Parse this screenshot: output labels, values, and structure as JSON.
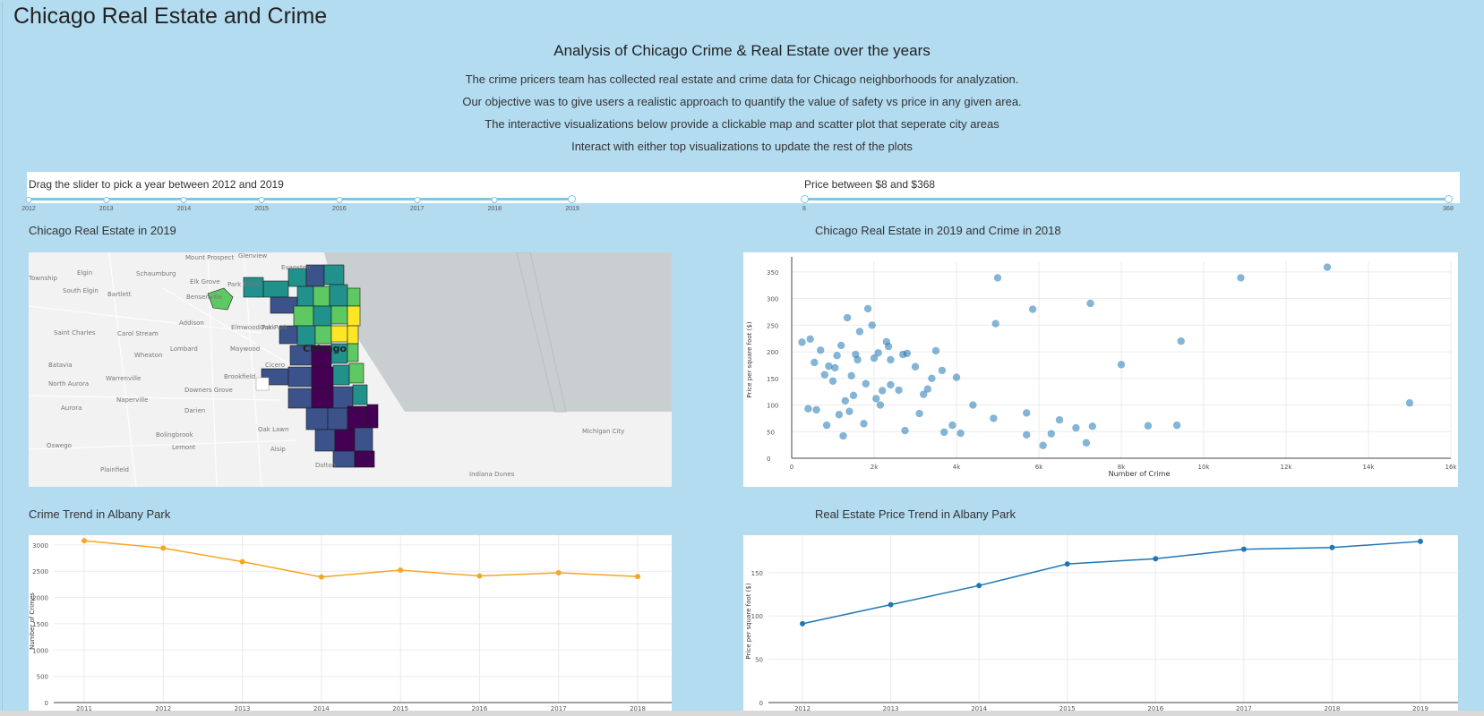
{
  "page": {
    "title": "Chicago Real Estate and Crime",
    "subtitle": "Analysis of Chicago Crime & Real Estate over the years",
    "intro": [
      "The crime pricers team has collected real estate and crime data for Chicago neighborhoods for analyzation.",
      "Our objective was to give users a realistic approach to quantify the value of safety vs price in any given area.",
      "The interactive visualizations below provide a clickable map and scatter plot that seperate city areas",
      "Interact with either top visualizations to update the rest of the plots"
    ]
  },
  "year_slider": {
    "label": "Drag the slider to pick a year between 2012 and 2019",
    "ticks": [
      "2012",
      "2013",
      "2014",
      "2015",
      "2016",
      "2017",
      "2018",
      "2019"
    ],
    "value": 2019
  },
  "price_slider": {
    "label": "Price between $8 and $368",
    "min_label": "8",
    "max_label": "368",
    "min": 8,
    "max": 368,
    "low": 8,
    "high": 368
  },
  "map": {
    "title": "Chicago Real Estate in 2019",
    "place_labels": [
      "Mount Prospect",
      "Glenview",
      "Evanston",
      "Elgin",
      "Schaumburg",
      "Elk Grove",
      "Park Ridge",
      "South Elgin",
      "Bartlett",
      "Bensenville",
      "Addison",
      "Elmwood Park",
      "Saint Charles",
      "Carol Stream",
      "Oak Park",
      "Chicago",
      "Lombard",
      "Maywood",
      "Cicero",
      "Batavia",
      "Wheaton",
      "Warrenville",
      "Brookfield",
      "North Aurora",
      "Downers Grove",
      "Aurora",
      "Naperville",
      "Darien",
      "Oak Lawn",
      "Bolingbrook",
      "Lemont",
      "Alsip",
      "Michigan City",
      "Oswego",
      "Plainfield",
      "Dolton",
      "Indiana Dunes",
      "Township"
    ],
    "colors": {
      "water": "#c9cfd1",
      "land": "#f2f2f2",
      "viridis": [
        "#440154",
        "#3b528b",
        "#21918c",
        "#5ec962",
        "#fde725"
      ]
    }
  },
  "scatter": {
    "title": "Chicago Real Estate in 2019 and Crime in 2018",
    "chart_data": {
      "type": "scatter",
      "xlabel": "Number of Crime",
      "ylabel": "Price per square foot ($)",
      "xlim": [
        0,
        16000
      ],
      "ylim": [
        0,
        370
      ],
      "x_ticks": [
        "0",
        "2k",
        "4k",
        "6k",
        "8k",
        "10k",
        "12k",
        "14k",
        "16k"
      ],
      "y_ticks": [
        "0",
        "50",
        "100",
        "150",
        "200",
        "250",
        "300",
        "350"
      ],
      "color": "#1f77b4",
      "points": [
        {
          "x": 250,
          "y": 218
        },
        {
          "x": 450,
          "y": 224
        },
        {
          "x": 700,
          "y": 203
        },
        {
          "x": 550,
          "y": 180
        },
        {
          "x": 400,
          "y": 93
        },
        {
          "x": 600,
          "y": 91
        },
        {
          "x": 800,
          "y": 157
        },
        {
          "x": 850,
          "y": 62
        },
        {
          "x": 900,
          "y": 173
        },
        {
          "x": 1000,
          "y": 145
        },
        {
          "x": 1050,
          "y": 170
        },
        {
          "x": 1100,
          "y": 193
        },
        {
          "x": 1150,
          "y": 82
        },
        {
          "x": 1200,
          "y": 212
        },
        {
          "x": 1250,
          "y": 42
        },
        {
          "x": 1300,
          "y": 108
        },
        {
          "x": 1350,
          "y": 264
        },
        {
          "x": 1400,
          "y": 88
        },
        {
          "x": 1450,
          "y": 155
        },
        {
          "x": 1500,
          "y": 118
        },
        {
          "x": 1550,
          "y": 195
        },
        {
          "x": 1600,
          "y": 185
        },
        {
          "x": 1650,
          "y": 238
        },
        {
          "x": 1750,
          "y": 65
        },
        {
          "x": 1800,
          "y": 140
        },
        {
          "x": 1850,
          "y": 281
        },
        {
          "x": 1950,
          "y": 250
        },
        {
          "x": 2000,
          "y": 188
        },
        {
          "x": 2050,
          "y": 112
        },
        {
          "x": 2100,
          "y": 198
        },
        {
          "x": 2150,
          "y": 100
        },
        {
          "x": 2200,
          "y": 127
        },
        {
          "x": 2300,
          "y": 219
        },
        {
          "x": 2350,
          "y": 210
        },
        {
          "x": 2400,
          "y": 185
        },
        {
          "x": 2400,
          "y": 138
        },
        {
          "x": 2600,
          "y": 128
        },
        {
          "x": 2700,
          "y": 195
        },
        {
          "x": 2750,
          "y": 52
        },
        {
          "x": 2800,
          "y": 197
        },
        {
          "x": 3000,
          "y": 172
        },
        {
          "x": 3100,
          "y": 84
        },
        {
          "x": 3200,
          "y": 120
        },
        {
          "x": 3300,
          "y": 130
        },
        {
          "x": 3400,
          "y": 150
        },
        {
          "x": 3500,
          "y": 202
        },
        {
          "x": 3650,
          "y": 165
        },
        {
          "x": 3700,
          "y": 49
        },
        {
          "x": 3900,
          "y": 62
        },
        {
          "x": 4100,
          "y": 47
        },
        {
          "x": 4000,
          "y": 152
        },
        {
          "x": 4400,
          "y": 100
        },
        {
          "x": 4900,
          "y": 75
        },
        {
          "x": 4950,
          "y": 253
        },
        {
          "x": 5000,
          "y": 339
        },
        {
          "x": 5700,
          "y": 44
        },
        {
          "x": 5700,
          "y": 85
        },
        {
          "x": 5850,
          "y": 280
        },
        {
          "x": 6100,
          "y": 24
        },
        {
          "x": 6300,
          "y": 46
        },
        {
          "x": 6500,
          "y": 72
        },
        {
          "x": 6900,
          "y": 57
        },
        {
          "x": 7150,
          "y": 29
        },
        {
          "x": 7250,
          "y": 291
        },
        {
          "x": 7300,
          "y": 60
        },
        {
          "x": 8000,
          "y": 176
        },
        {
          "x": 8650,
          "y": 61
        },
        {
          "x": 9350,
          "y": 62
        },
        {
          "x": 9450,
          "y": 220
        },
        {
          "x": 10900,
          "y": 339
        },
        {
          "x": 13000,
          "y": 359
        },
        {
          "x": 15000,
          "y": 104
        }
      ]
    }
  },
  "crime_trend": {
    "title": "Crime Trend in Albany Park",
    "chart_data": {
      "type": "line",
      "ylabel": "Number of Crimes",
      "categories": [
        "2011",
        "2012",
        "2013",
        "2014",
        "2015",
        "2016",
        "2017",
        "2018"
      ],
      "values": [
        3080,
        2940,
        2680,
        2390,
        2520,
        2410,
        2470,
        2400
      ],
      "y_ticks": [
        "0",
        "500",
        "1000",
        "1500",
        "2000",
        "2500",
        "3000"
      ],
      "ylim": [
        0,
        3100
      ],
      "color": "#f5a623"
    }
  },
  "price_trend": {
    "title": "Real Estate Price Trend in Albany Park",
    "chart_data": {
      "type": "line",
      "ylabel": "Price per square foot ($)",
      "categories": [
        "2012",
        "2013",
        "2014",
        "2015",
        "2016",
        "2017",
        "2018",
        "2019"
      ],
      "values": [
        91,
        113,
        135,
        160,
        166,
        177,
        179,
        186
      ],
      "y_ticks": [
        "0",
        "50",
        "100",
        "150"
      ],
      "ylim": [
        0,
        188
      ],
      "color": "#1f77b4"
    }
  }
}
